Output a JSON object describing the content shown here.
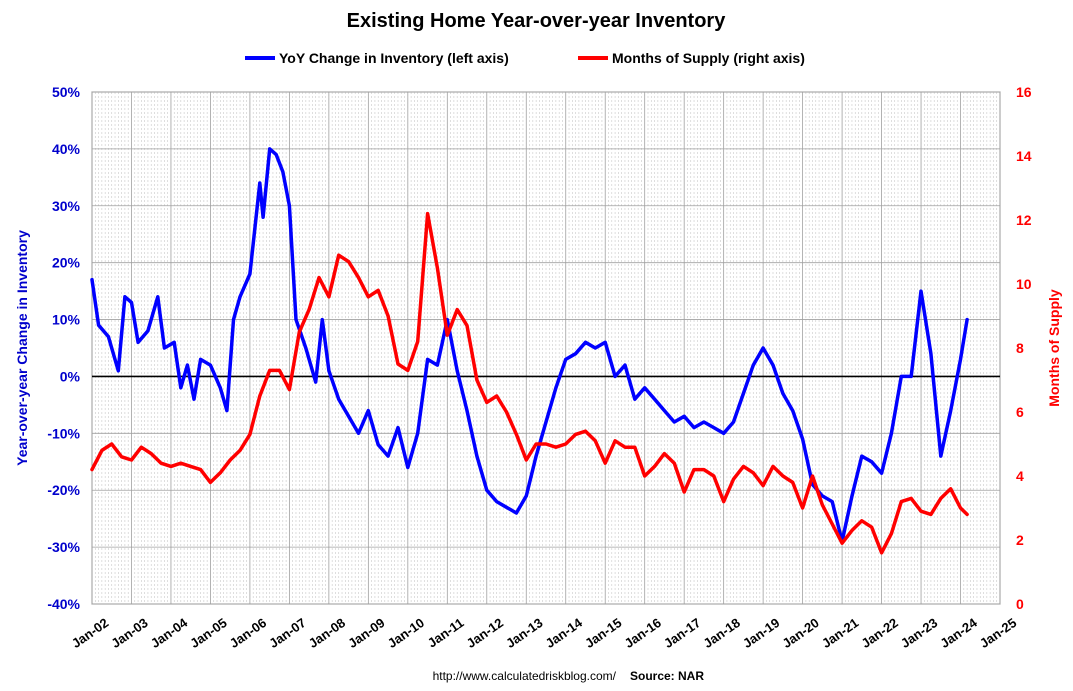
{
  "chart_data": {
    "type": "line",
    "title": "Existing Home Year-over-year Inventory",
    "ylabel_left": "Year-over-year Change in Inventory",
    "ylabel_right": "Months of Supply",
    "ylim_left": [
      -40,
      50
    ],
    "ylim_right": [
      0,
      16
    ],
    "yticks_left": [
      "-40%",
      "-30%",
      "-20%",
      "-10%",
      "0%",
      "10%",
      "20%",
      "30%",
      "40%",
      "50%"
    ],
    "yticks_right": [
      "0",
      "2",
      "4",
      "6",
      "8",
      "10",
      "12",
      "14",
      "16"
    ],
    "xticks": [
      "Jan-02",
      "Jan-03",
      "Jan-04",
      "Jan-05",
      "Jan-06",
      "Jan-07",
      "Jan-08",
      "Jan-09",
      "Jan-10",
      "Jan-11",
      "Jan-12",
      "Jan-13",
      "Jan-14",
      "Jan-15",
      "Jan-16",
      "Jan-17",
      "Jan-18",
      "Jan-19",
      "Jan-20",
      "Jan-21",
      "Jan-22",
      "Jan-23",
      "Jan-24",
      "Jan-25"
    ],
    "grid": true,
    "legend_position": "top",
    "series": [
      {
        "name": "YoY Change in Inventory (left axis)",
        "axis": "left",
        "color": "#0000ff",
        "points": [
          [
            "Jan-02",
            17
          ],
          [
            "Mar-02",
            9
          ],
          [
            "Jun-02",
            7
          ],
          [
            "Sep-02",
            1
          ],
          [
            "Nov-02",
            14
          ],
          [
            "Jan-03",
            13
          ],
          [
            "Mar-03",
            6
          ],
          [
            "Jun-03",
            8
          ],
          [
            "Sep-03",
            14
          ],
          [
            "Nov-03",
            5
          ],
          [
            "Feb-04",
            6
          ],
          [
            "Apr-04",
            -2
          ],
          [
            "Jun-04",
            2
          ],
          [
            "Aug-04",
            -4
          ],
          [
            "Oct-04",
            3
          ],
          [
            "Jan-05",
            2
          ],
          [
            "Apr-05",
            -2
          ],
          [
            "Jun-05",
            -6
          ],
          [
            "Aug-05",
            10
          ],
          [
            "Oct-05",
            14
          ],
          [
            "Jan-06",
            18
          ],
          [
            "Apr-06",
            34
          ],
          [
            "May-06",
            28
          ],
          [
            "Jul-06",
            40
          ],
          [
            "Sep-06",
            39
          ],
          [
            "Nov-06",
            36
          ],
          [
            "Jan-07",
            30
          ],
          [
            "Mar-07",
            10
          ],
          [
            "Jun-07",
            5
          ],
          [
            "Sep-07",
            -1
          ],
          [
            "Nov-07",
            10
          ],
          [
            "Jan-08",
            1
          ],
          [
            "Apr-08",
            -4
          ],
          [
            "Jul-08",
            -7
          ],
          [
            "Oct-08",
            -10
          ],
          [
            "Jan-09",
            -6
          ],
          [
            "Apr-09",
            -12
          ],
          [
            "Jul-09",
            -14
          ],
          [
            "Oct-09",
            -9
          ],
          [
            "Jan-10",
            -16
          ],
          [
            "Apr-10",
            -10
          ],
          [
            "Jul-10",
            3
          ],
          [
            "Oct-10",
            2
          ],
          [
            "Jan-11",
            10
          ],
          [
            "Apr-11",
            1
          ],
          [
            "Jul-11",
            -6
          ],
          [
            "Oct-11",
            -14
          ],
          [
            "Jan-12",
            -20
          ],
          [
            "Apr-12",
            -22
          ],
          [
            "Jul-12",
            -23
          ],
          [
            "Oct-12",
            -24
          ],
          [
            "Jan-13",
            -21
          ],
          [
            "Apr-13",
            -14
          ],
          [
            "Jul-13",
            -8
          ],
          [
            "Oct-13",
            -2
          ],
          [
            "Jan-14",
            3
          ],
          [
            "Apr-14",
            4
          ],
          [
            "Jul-14",
            6
          ],
          [
            "Oct-14",
            5
          ],
          [
            "Jan-15",
            6
          ],
          [
            "Apr-15",
            0
          ],
          [
            "Jul-15",
            2
          ],
          [
            "Oct-15",
            -4
          ],
          [
            "Jan-16",
            -2
          ],
          [
            "Apr-16",
            -4
          ],
          [
            "Jul-16",
            -6
          ],
          [
            "Oct-16",
            -8
          ],
          [
            "Jan-17",
            -7
          ],
          [
            "Apr-17",
            -9
          ],
          [
            "Jul-17",
            -8
          ],
          [
            "Oct-17",
            -9
          ],
          [
            "Jan-18",
            -10
          ],
          [
            "Apr-18",
            -8
          ],
          [
            "Jul-18",
            -3
          ],
          [
            "Oct-18",
            2
          ],
          [
            "Jan-19",
            5
          ],
          [
            "Apr-19",
            2
          ],
          [
            "Jul-19",
            -3
          ],
          [
            "Oct-19",
            -6
          ],
          [
            "Jan-20",
            -11
          ],
          [
            "Apr-20",
            -19
          ],
          [
            "Jul-20",
            -21
          ],
          [
            "Oct-20",
            -22
          ],
          [
            "Jan-21",
            -29
          ],
          [
            "Apr-21",
            -21
          ],
          [
            "Jul-21",
            -14
          ],
          [
            "Oct-21",
            -15
          ],
          [
            "Jan-22",
            -17
          ],
          [
            "Apr-22",
            -10
          ],
          [
            "Jul-22",
            0
          ],
          [
            "Oct-22",
            0
          ],
          [
            "Jan-23",
            15
          ],
          [
            "Apr-23",
            4
          ],
          [
            "Jul-23",
            -14
          ],
          [
            "Oct-23",
            -6
          ],
          [
            "Jan-24",
            3
          ],
          [
            "Mar-24",
            10
          ]
        ]
      },
      {
        "name": "Months of Supply (right axis)",
        "axis": "right",
        "color": "#ff0000",
        "points": [
          [
            "Jan-02",
            4.2
          ],
          [
            "Apr-02",
            4.8
          ],
          [
            "Jul-02",
            5.0
          ],
          [
            "Oct-02",
            4.6
          ],
          [
            "Jan-03",
            4.5
          ],
          [
            "Apr-03",
            4.9
          ],
          [
            "Jul-03",
            4.7
          ],
          [
            "Oct-03",
            4.4
          ],
          [
            "Jan-04",
            4.3
          ],
          [
            "Apr-04",
            4.4
          ],
          [
            "Jul-04",
            4.3
          ],
          [
            "Oct-04",
            4.2
          ],
          [
            "Jan-05",
            3.8
          ],
          [
            "Apr-05",
            4.1
          ],
          [
            "Jul-05",
            4.5
          ],
          [
            "Oct-05",
            4.8
          ],
          [
            "Jan-06",
            5.3
          ],
          [
            "Apr-06",
            6.5
          ],
          [
            "Jul-06",
            7.3
          ],
          [
            "Oct-06",
            7.3
          ],
          [
            "Jan-07",
            6.7
          ],
          [
            "Apr-07",
            8.5
          ],
          [
            "Jul-07",
            9.2
          ],
          [
            "Oct-07",
            10.2
          ],
          [
            "Jan-08",
            9.6
          ],
          [
            "Apr-08",
            10.9
          ],
          [
            "Jul-08",
            10.7
          ],
          [
            "Oct-08",
            10.2
          ],
          [
            "Jan-09",
            9.6
          ],
          [
            "Apr-09",
            9.8
          ],
          [
            "Jul-09",
            9.0
          ],
          [
            "Oct-09",
            7.5
          ],
          [
            "Jan-10",
            7.3
          ],
          [
            "Apr-10",
            8.2
          ],
          [
            "Jul-10",
            12.2
          ],
          [
            "Oct-10",
            10.5
          ],
          [
            "Jan-11",
            8.4
          ],
          [
            "Apr-11",
            9.2
          ],
          [
            "Jul-11",
            8.7
          ],
          [
            "Oct-11",
            7.0
          ],
          [
            "Jan-12",
            6.3
          ],
          [
            "Apr-12",
            6.5
          ],
          [
            "Jul-12",
            6.0
          ],
          [
            "Oct-12",
            5.3
          ],
          [
            "Jan-13",
            4.5
          ],
          [
            "Apr-13",
            5.0
          ],
          [
            "Jul-13",
            5.0
          ],
          [
            "Oct-13",
            4.9
          ],
          [
            "Jan-14",
            5.0
          ],
          [
            "Apr-14",
            5.3
          ],
          [
            "Jul-14",
            5.4
          ],
          [
            "Oct-14",
            5.1
          ],
          [
            "Jan-15",
            4.4
          ],
          [
            "Apr-15",
            5.1
          ],
          [
            "Jul-15",
            4.9
          ],
          [
            "Oct-15",
            4.9
          ],
          [
            "Jan-16",
            4.0
          ],
          [
            "Apr-16",
            4.3
          ],
          [
            "Jul-16",
            4.7
          ],
          [
            "Oct-16",
            4.4
          ],
          [
            "Jan-17",
            3.5
          ],
          [
            "Apr-17",
            4.2
          ],
          [
            "Jul-17",
            4.2
          ],
          [
            "Oct-17",
            4.0
          ],
          [
            "Jan-18",
            3.2
          ],
          [
            "Apr-18",
            3.9
          ],
          [
            "Jul-18",
            4.3
          ],
          [
            "Oct-18",
            4.1
          ],
          [
            "Jan-19",
            3.7
          ],
          [
            "Apr-19",
            4.3
          ],
          [
            "Jul-19",
            4.0
          ],
          [
            "Oct-19",
            3.8
          ],
          [
            "Jan-20",
            3.0
          ],
          [
            "Apr-20",
            4.0
          ],
          [
            "Jul-20",
            3.1
          ],
          [
            "Oct-20",
            2.5
          ],
          [
            "Jan-21",
            1.9
          ],
          [
            "Apr-21",
            2.3
          ],
          [
            "Jul-21",
            2.6
          ],
          [
            "Oct-21",
            2.4
          ],
          [
            "Jan-22",
            1.6
          ],
          [
            "Apr-22",
            2.2
          ],
          [
            "Jul-22",
            3.2
          ],
          [
            "Oct-22",
            3.3
          ],
          [
            "Jan-23",
            2.9
          ],
          [
            "Apr-23",
            2.8
          ],
          [
            "Jul-23",
            3.3
          ],
          [
            "Oct-23",
            3.6
          ],
          [
            "Jan-24",
            3.0
          ],
          [
            "Mar-24",
            2.8
          ]
        ]
      }
    ],
    "footer": {
      "url": "http://www.calculatedriskblog.com/",
      "source": "Source: NAR"
    }
  }
}
